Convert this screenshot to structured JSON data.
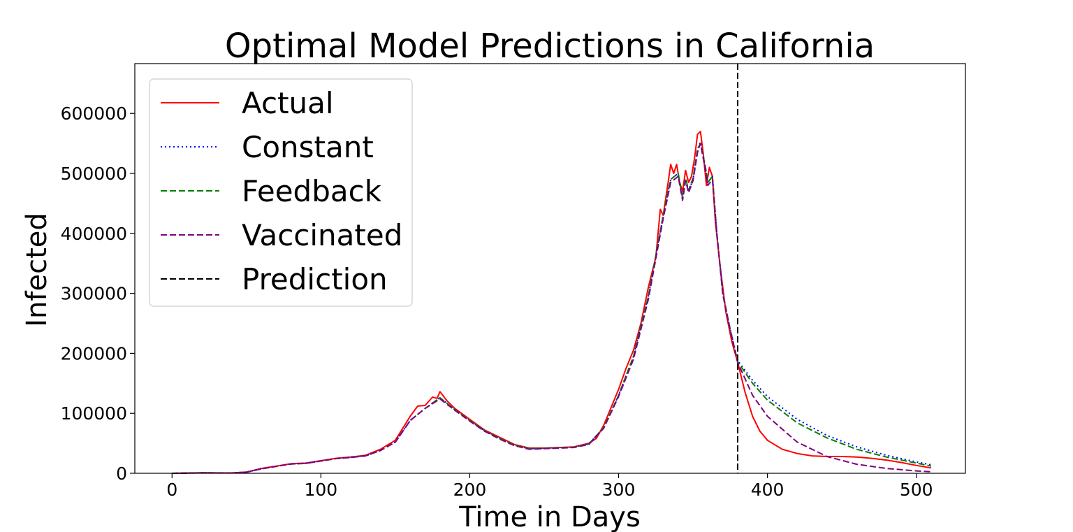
{
  "chart_data": {
    "type": "line",
    "title": "Optimal Model Predictions in California",
    "xlabel": "Time in Days",
    "ylabel": "Infected",
    "xlim": [
      -25,
      533
    ],
    "ylim": [
      0,
      683000
    ],
    "xticks": [
      0,
      100,
      200,
      300,
      400,
      500
    ],
    "yticks": [
      0,
      100000,
      200000,
      300000,
      400000,
      500000,
      600000
    ],
    "grid": false,
    "legend_position": "top-left",
    "prediction_day": 380,
    "series": [
      {
        "name": "Actual",
        "color": "#ff0000",
        "style": "solid",
        "points": [
          [
            0,
            0
          ],
          [
            20,
            800
          ],
          [
            40,
            600
          ],
          [
            50,
            2000
          ],
          [
            60,
            8000
          ],
          [
            70,
            12000
          ],
          [
            80,
            16000
          ],
          [
            90,
            17000
          ],
          [
            100,
            21000
          ],
          [
            110,
            25000
          ],
          [
            120,
            27000
          ],
          [
            130,
            30000
          ],
          [
            140,
            40000
          ],
          [
            150,
            55000
          ],
          [
            160,
            95000
          ],
          [
            165,
            112000
          ],
          [
            170,
            113000
          ],
          [
            175,
            127000
          ],
          [
            178,
            125000
          ],
          [
            180,
            136000
          ],
          [
            185,
            120000
          ],
          [
            190,
            108000
          ],
          [
            200,
            90000
          ],
          [
            210,
            72000
          ],
          [
            220,
            60000
          ],
          [
            230,
            48000
          ],
          [
            240,
            42000
          ],
          [
            250,
            42000
          ],
          [
            260,
            43000
          ],
          [
            270,
            44000
          ],
          [
            280,
            50000
          ],
          [
            285,
            58000
          ],
          [
            290,
            80000
          ],
          [
            295,
            110000
          ],
          [
            300,
            140000
          ],
          [
            305,
            175000
          ],
          [
            310,
            205000
          ],
          [
            315,
            250000
          ],
          [
            320,
            310000
          ],
          [
            325,
            360000
          ],
          [
            328,
            440000
          ],
          [
            330,
            430000
          ],
          [
            333,
            480000
          ],
          [
            335,
            515000
          ],
          [
            337,
            500000
          ],
          [
            339,
            515000
          ],
          [
            341,
            485000
          ],
          [
            343,
            470000
          ],
          [
            345,
            505000
          ],
          [
            347,
            485000
          ],
          [
            349,
            495000
          ],
          [
            351,
            525000
          ],
          [
            353,
            565000
          ],
          [
            355,
            570000
          ],
          [
            357,
            530000
          ],
          [
            359,
            480000
          ],
          [
            361,
            510000
          ],
          [
            363,
            495000
          ],
          [
            365,
            420000
          ],
          [
            368,
            350000
          ],
          [
            372,
            270000
          ],
          [
            376,
            220000
          ],
          [
            380,
            185000
          ],
          [
            385,
            135000
          ],
          [
            390,
            95000
          ],
          [
            395,
            70000
          ],
          [
            400,
            55000
          ],
          [
            410,
            40000
          ],
          [
            420,
            33000
          ],
          [
            430,
            29000
          ],
          [
            440,
            28000
          ],
          [
            450,
            28000
          ],
          [
            460,
            27000
          ],
          [
            470,
            25000
          ],
          [
            480,
            22000
          ],
          [
            490,
            18000
          ],
          [
            500,
            13000
          ],
          [
            510,
            9000
          ]
        ]
      },
      {
        "name": "Constant",
        "color": "#0000ff",
        "style": "dotted",
        "points": [
          [
            0,
            0
          ],
          [
            20,
            700
          ],
          [
            40,
            600
          ],
          [
            50,
            1800
          ],
          [
            60,
            7500
          ],
          [
            70,
            11500
          ],
          [
            80,
            15500
          ],
          [
            90,
            16500
          ],
          [
            100,
            20500
          ],
          [
            110,
            24500
          ],
          [
            120,
            26500
          ],
          [
            130,
            29000
          ],
          [
            140,
            38000
          ],
          [
            150,
            52000
          ],
          [
            160,
            88000
          ],
          [
            170,
            108000
          ],
          [
            180,
            126000
          ],
          [
            190,
            106000
          ],
          [
            200,
            88000
          ],
          [
            210,
            71000
          ],
          [
            220,
            58000
          ],
          [
            230,
            47000
          ],
          [
            240,
            41000
          ],
          [
            250,
            41500
          ],
          [
            260,
            42500
          ],
          [
            270,
            43500
          ],
          [
            280,
            49000
          ],
          [
            290,
            76000
          ],
          [
            300,
            130000
          ],
          [
            310,
            195000
          ],
          [
            320,
            295000
          ],
          [
            330,
            430000
          ],
          [
            335,
            490000
          ],
          [
            340,
            500000
          ],
          [
            343,
            458000
          ],
          [
            345,
            490000
          ],
          [
            347,
            470000
          ],
          [
            350,
            490000
          ],
          [
            353,
            540000
          ],
          [
            355,
            552000
          ],
          [
            358,
            515000
          ],
          [
            360,
            485000
          ],
          [
            363,
            495000
          ],
          [
            366,
            400000
          ],
          [
            370,
            300000
          ],
          [
            375,
            240000
          ],
          [
            380,
            188000
          ],
          [
            390,
            155000
          ],
          [
            400,
            128000
          ],
          [
            420,
            90000
          ],
          [
            440,
            63000
          ],
          [
            460,
            44000
          ],
          [
            480,
            30000
          ],
          [
            500,
            19000
          ],
          [
            510,
            14000
          ]
        ]
      },
      {
        "name": "Feedback",
        "color": "#008000",
        "style": "dashed",
        "points": [
          [
            0,
            0
          ],
          [
            20,
            700
          ],
          [
            40,
            600
          ],
          [
            50,
            1800
          ],
          [
            60,
            7500
          ],
          [
            70,
            11500
          ],
          [
            80,
            15500
          ],
          [
            90,
            16500
          ],
          [
            100,
            20500
          ],
          [
            110,
            24500
          ],
          [
            120,
            26500
          ],
          [
            130,
            29000
          ],
          [
            140,
            38000
          ],
          [
            150,
            52000
          ],
          [
            160,
            88000
          ],
          [
            170,
            108000
          ],
          [
            180,
            126000
          ],
          [
            190,
            106000
          ],
          [
            200,
            88000
          ],
          [
            210,
            71000
          ],
          [
            220,
            58000
          ],
          [
            230,
            47000
          ],
          [
            240,
            41000
          ],
          [
            250,
            41500
          ],
          [
            260,
            42500
          ],
          [
            270,
            43500
          ],
          [
            280,
            49000
          ],
          [
            290,
            76000
          ],
          [
            300,
            130000
          ],
          [
            310,
            195000
          ],
          [
            320,
            295000
          ],
          [
            330,
            430000
          ],
          [
            335,
            490000
          ],
          [
            340,
            500000
          ],
          [
            343,
            460000
          ],
          [
            345,
            492000
          ],
          [
            347,
            472000
          ],
          [
            350,
            492000
          ],
          [
            353,
            540000
          ],
          [
            355,
            550000
          ],
          [
            358,
            515000
          ],
          [
            360,
            485000
          ],
          [
            363,
            495000
          ],
          [
            366,
            400000
          ],
          [
            370,
            300000
          ],
          [
            375,
            240000
          ],
          [
            380,
            186000
          ],
          [
            390,
            150000
          ],
          [
            400,
            122000
          ],
          [
            420,
            84000
          ],
          [
            440,
            59000
          ],
          [
            460,
            40000
          ],
          [
            480,
            27000
          ],
          [
            500,
            17000
          ],
          [
            510,
            12000
          ]
        ]
      },
      {
        "name": "Vaccinated",
        "color": "#800080",
        "style": "dashed",
        "points": [
          [
            0,
            0
          ],
          [
            20,
            700
          ],
          [
            40,
            600
          ],
          [
            50,
            1800
          ],
          [
            60,
            7500
          ],
          [
            70,
            11500
          ],
          [
            80,
            15500
          ],
          [
            90,
            16500
          ],
          [
            100,
            20500
          ],
          [
            110,
            24500
          ],
          [
            120,
            26500
          ],
          [
            130,
            29000
          ],
          [
            140,
            38000
          ],
          [
            150,
            52000
          ],
          [
            160,
            88000
          ],
          [
            170,
            108000
          ],
          [
            180,
            124000
          ],
          [
            190,
            105000
          ],
          [
            200,
            87000
          ],
          [
            210,
            70000
          ],
          [
            220,
            57000
          ],
          [
            230,
            46000
          ],
          [
            240,
            40000
          ],
          [
            250,
            41000
          ],
          [
            260,
            42000
          ],
          [
            270,
            43000
          ],
          [
            280,
            48000
          ],
          [
            290,
            75000
          ],
          [
            300,
            128000
          ],
          [
            310,
            190000
          ],
          [
            320,
            290000
          ],
          [
            330,
            425000
          ],
          [
            335,
            485000
          ],
          [
            340,
            495000
          ],
          [
            343,
            455000
          ],
          [
            345,
            488000
          ],
          [
            347,
            468000
          ],
          [
            350,
            488000
          ],
          [
            353,
            535000
          ],
          [
            355,
            550000
          ],
          [
            358,
            510000
          ],
          [
            360,
            480000
          ],
          [
            363,
            490000
          ],
          [
            366,
            398000
          ],
          [
            370,
            298000
          ],
          [
            375,
            238000
          ],
          [
            380,
            185000
          ],
          [
            390,
            130000
          ],
          [
            400,
            95000
          ],
          [
            420,
            52000
          ],
          [
            440,
            28000
          ],
          [
            460,
            15000
          ],
          [
            480,
            8000
          ],
          [
            500,
            4000
          ],
          [
            510,
            2500
          ]
        ]
      }
    ],
    "prediction_line": {
      "name": "Prediction",
      "color": "#000000",
      "style": "dashed"
    }
  }
}
